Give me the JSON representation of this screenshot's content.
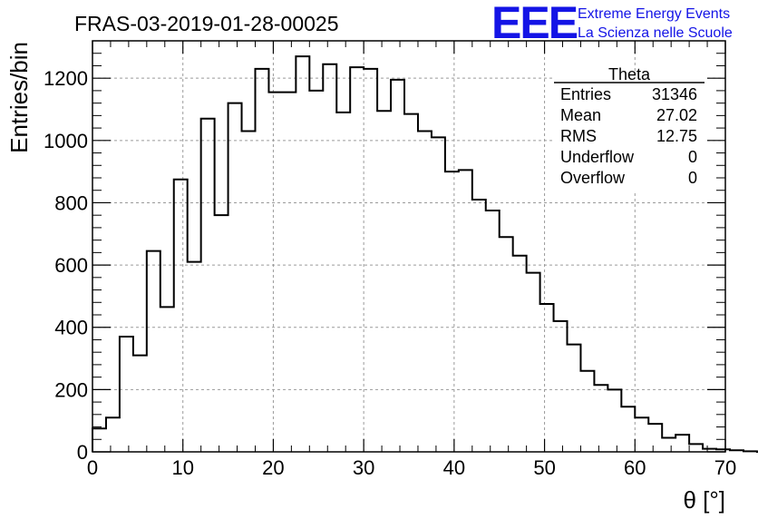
{
  "chart_data": {
    "type": "histogram",
    "title": "FRAS-03-2019-01-28-00025",
    "xlabel": "θ [°]",
    "ylabel": "Entries/bin",
    "xlim": [
      0,
      70
    ],
    "ylim": [
      0,
      1320
    ],
    "x_ticks": [
      0,
      10,
      20,
      30,
      40,
      50,
      60,
      70
    ],
    "y_ticks": [
      0,
      200,
      400,
      600,
      800,
      1000,
      1200
    ],
    "grid": true,
    "bin_width": 1.5,
    "bin_start": 0,
    "values": [
      75,
      110,
      370,
      310,
      645,
      465,
      875,
      610,
      1070,
      760,
      1120,
      1030,
      1230,
      1155,
      1155,
      1270,
      1160,
      1245,
      1090,
      1235,
      1230,
      1095,
      1195,
      1085,
      1030,
      1010,
      900,
      905,
      810,
      775,
      690,
      630,
      575,
      475,
      420,
      345,
      260,
      215,
      200,
      145,
      110,
      90,
      45,
      55,
      25,
      10,
      8,
      5,
      2,
      0,
      0,
      0,
      0,
      0,
      0,
      0
    ]
  },
  "stats_box": {
    "name": "Theta",
    "rows": [
      {
        "label": "Entries",
        "value": "31346"
      },
      {
        "label": "Mean",
        "value": "27.02"
      },
      {
        "label": "RMS",
        "value": "12.75"
      },
      {
        "label": "Underflow",
        "value": "0"
      },
      {
        "label": "Overflow",
        "value": "0"
      }
    ]
  },
  "logo": {
    "mark": "EEE",
    "line1": "Extreme Energy Events",
    "line2": "La Scienza nelle Scuole"
  },
  "colors": {
    "logo": "#1414e6",
    "line": "#000000",
    "grid": "#9a9a9a"
  }
}
